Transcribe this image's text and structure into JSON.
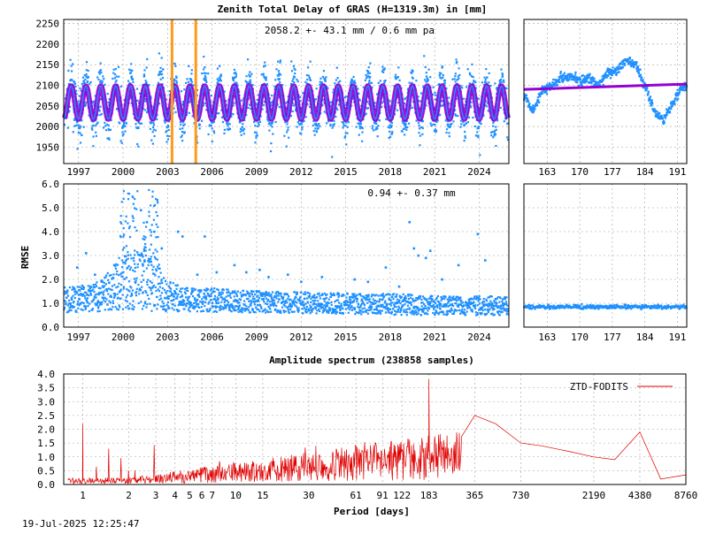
{
  "timestamp": "19-Jul-2025 12:25:47",
  "colors": {
    "series_blue": "#1e90ff",
    "model_purple": "#9400d3",
    "marker_orange": "#ff9a1a",
    "spectrum_red": "#e00000"
  },
  "chart_data": [
    {
      "id": "ztd",
      "type": "scatter",
      "title": "Zenith Total Delay of GRAS (H=1319.3m) in [mm]",
      "annotation": "2058.2 +-  43.1 mm /  0.6 mm pa",
      "ylabel": "",
      "xlim": [
        1996.0,
        2026.0
      ],
      "ylim": [
        1910,
        2260
      ],
      "x_ticks": [
        1997,
        2000,
        2003,
        2006,
        2009,
        2012,
        2015,
        2018,
        2021,
        2024
      ],
      "y_ticks": [
        1950,
        2000,
        2050,
        2100,
        2150,
        2200,
        2250
      ],
      "mean": 2058.2,
      "annual_amplitude": 40,
      "scatter_half_width": 80,
      "model_half_width": 38,
      "vertical_markers": [
        2003.3,
        2004.9
      ],
      "grid": true
    },
    {
      "id": "ztd-recent",
      "type": "scatter",
      "xlim": [
        158,
        193
      ],
      "ylim": [
        1910,
        2260
      ],
      "x_ticks": [
        163,
        170,
        177,
        184,
        191
      ],
      "trend_start": 2090,
      "trend_end": 2103,
      "points": [
        [
          158,
          2075
        ],
        [
          160,
          2040
        ],
        [
          162,
          2090
        ],
        [
          164,
          2100
        ],
        [
          166,
          2120
        ],
        [
          168,
          2125
        ],
        [
          170,
          2110
        ],
        [
          172,
          2115
        ],
        [
          174,
          2100
        ],
        [
          176,
          2130
        ],
        [
          178,
          2135
        ],
        [
          180,
          2160
        ],
        [
          182,
          2150
        ],
        [
          184,
          2100
        ],
        [
          186,
          2040
        ],
        [
          188,
          2015
        ],
        [
          190,
          2060
        ],
        [
          192,
          2095
        ]
      ],
      "grid": true
    },
    {
      "id": "rmse",
      "type": "scatter",
      "annotation": "0.94 +-  0.37 mm",
      "ylabel": "RMSE",
      "xlim": [
        1996.0,
        2026.0
      ],
      "ylim": [
        0.0,
        6.0
      ],
      "x_ticks": [
        1997,
        2000,
        2003,
        2006,
        2009,
        2012,
        2015,
        2018,
        2021,
        2024
      ],
      "y_ticks": [
        0.0,
        1.0,
        2.0,
        3.0,
        4.0,
        5.0,
        6.0
      ],
      "envelope": [
        [
          1996,
          1.7
        ],
        [
          1998,
          1.8
        ],
        [
          1999,
          2.3
        ],
        [
          2000,
          3.0
        ],
        [
          2001,
          3.2
        ],
        [
          2002,
          3.4
        ],
        [
          2002.8,
          2.0
        ],
        [
          2004,
          1.7
        ],
        [
          2007,
          1.6
        ],
        [
          2010,
          1.5
        ],
        [
          2014,
          1.45
        ],
        [
          2018,
          1.4
        ],
        [
          2022,
          1.3
        ],
        [
          2025.9,
          1.3
        ]
      ],
      "baseline": [
        [
          1996,
          0.6
        ],
        [
          2000,
          0.7
        ],
        [
          2003,
          0.65
        ],
        [
          2010,
          0.6
        ],
        [
          2020,
          0.5
        ],
        [
          2025.9,
          0.5
        ]
      ],
      "outliers": [
        [
          1996.9,
          2.5
        ],
        [
          1997.5,
          3.1
        ],
        [
          1998.1,
          2.2
        ],
        [
          1998.6,
          1.9
        ],
        [
          1999.4,
          2.6
        ],
        [
          2001.2,
          4.9
        ],
        [
          2001.6,
          4.4
        ],
        [
          2002.1,
          4.0
        ],
        [
          2002.6,
          3.3
        ],
        [
          2003.7,
          4.0
        ],
        [
          2004.0,
          3.8
        ],
        [
          2005.0,
          2.2
        ],
        [
          2005.5,
          3.8
        ],
        [
          2006.3,
          2.3
        ],
        [
          2007.5,
          2.6
        ],
        [
          2008.3,
          2.3
        ],
        [
          2009.2,
          2.4
        ],
        [
          2009.8,
          2.1
        ],
        [
          2011.1,
          2.2
        ],
        [
          2012.0,
          1.9
        ],
        [
          2013.4,
          2.1
        ],
        [
          2015.6,
          2.0
        ],
        [
          2016.5,
          1.9
        ],
        [
          2017.7,
          2.5
        ],
        [
          2018.6,
          1.7
        ],
        [
          2019.3,
          4.4
        ],
        [
          2019.6,
          3.3
        ],
        [
          2019.9,
          3.0
        ],
        [
          2020.4,
          2.9
        ],
        [
          2020.7,
          3.2
        ],
        [
          2021.5,
          2.0
        ],
        [
          2022.6,
          2.6
        ],
        [
          2023.9,
          3.9
        ],
        [
          2024.4,
          2.8
        ]
      ],
      "dense_spikes": [
        [
          1999.9,
          5.9
        ],
        [
          2000.3,
          5.6
        ],
        [
          2000.8,
          5.8
        ],
        [
          2001.4,
          4.5
        ],
        [
          2001.9,
          5.9
        ],
        [
          2002.2,
          5.8
        ]
      ],
      "grid": true
    },
    {
      "id": "rmse-recent",
      "type": "scatter",
      "xlim": [
        158,
        193
      ],
      "ylim": [
        0.0,
        6.0
      ],
      "x_ticks": [
        163,
        170,
        177,
        184,
        191
      ],
      "level": 0.85,
      "grid": true
    },
    {
      "id": "spectrum",
      "type": "line",
      "title": "Amplitude spectrum (238858 samples)",
      "xlabel": "Period [days]",
      "ylabel": "",
      "scale_x": "log",
      "xlim": [
        0.75,
        8760
      ],
      "ylim": [
        0.0,
        4.0
      ],
      "x_tick_labels": [
        "1",
        "2",
        "3",
        "4",
        "5",
        "6",
        "7",
        "10",
        "15",
        "30",
        "61",
        "91",
        "122",
        "183",
        "365",
        "730",
        "2190",
        "4380",
        "8760"
      ],
      "x_tick_values": [
        1,
        2,
        3,
        4,
        5,
        6,
        7,
        10,
        15,
        30,
        61,
        91,
        122,
        183,
        365,
        730,
        2190,
        4380,
        8760
      ],
      "y_ticks": [
        0.0,
        0.5,
        1.0,
        1.5,
        2.0,
        2.5,
        3.0,
        3.5,
        4.0
      ],
      "legend": {
        "label": "ZTD-FODITS",
        "placement": "top-right"
      },
      "peaks": [
        [
          1.0,
          2.2
        ],
        [
          183,
          3.8
        ],
        [
          365,
          2.5
        ],
        [
          500,
          2.2
        ],
        [
          730,
          1.5
        ],
        [
          1000,
          1.4
        ],
        [
          1500,
          1.2
        ],
        [
          2190,
          1.0
        ],
        [
          3000,
          0.9
        ],
        [
          4380,
          1.9
        ],
        [
          6000,
          0.2
        ],
        [
          8760,
          0.35
        ]
      ],
      "grid": true
    }
  ]
}
